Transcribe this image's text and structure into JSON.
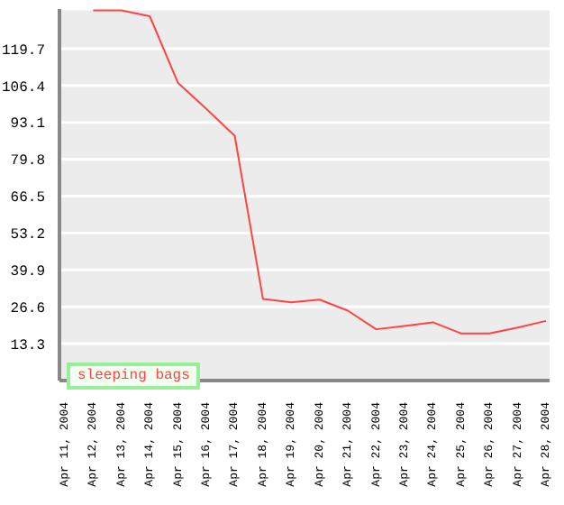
{
  "chart_data": {
    "type": "line",
    "categories": [
      "Apr 11, 2004",
      "Apr 12, 2004",
      "Apr 13, 2004",
      "Apr 14, 2004",
      "Apr 15, 2004",
      "Apr 16, 2004",
      "Apr 17, 2004",
      "Apr 18, 2004",
      "Apr 19, 2004",
      "Apr 20, 2004",
      "Apr 21, 2004",
      "Apr 22, 2004",
      "Apr 23, 2004",
      "Apr 24, 2004",
      "Apr 25, 2004",
      "Apr 26, 2004",
      "Apr 27, 2004",
      "Apr 28, 2004"
    ],
    "series": [
      {
        "name": "sleeping bags",
        "color": "#ff4444",
        "values": [
          null,
          133.5,
          133.5,
          131.4,
          107.3,
          98,
          88.3,
          29.4,
          28.2,
          29.2,
          25.2,
          18.5,
          19.7,
          21,
          17,
          17,
          19.1,
          21.5
        ]
      }
    ],
    "ylim": [
      0,
      134
    ],
    "yticks": [
      13.3,
      26.6,
      39.9,
      53.2,
      66.5,
      79.8,
      93.1,
      106.4,
      119.7
    ],
    "grid": "y",
    "legend": "bottom",
    "marker": "none",
    "line_style": "solid"
  }
}
